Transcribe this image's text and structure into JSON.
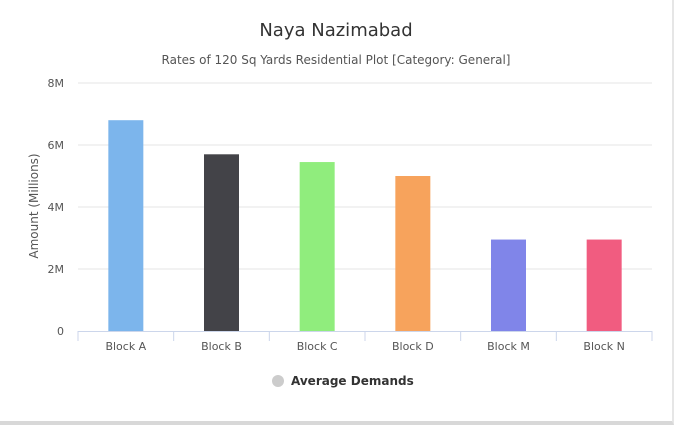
{
  "chart_data": {
    "type": "bar",
    "title": "Naya Nazimabad",
    "subtitle": "Rates of 120 Sq Yards Residential Plot [Category: General]",
    "ylabel": "Amount (Millions)",
    "xlabel": "",
    "categories": [
      "Block A",
      "Block B",
      "Block C",
      "Block D",
      "Block M",
      "Block N"
    ],
    "values": [
      6.8,
      5.7,
      5.45,
      5.0,
      2.95,
      2.95
    ],
    "colors": [
      "#7cb5ec",
      "#434348",
      "#90ed7d",
      "#f7a35c",
      "#8085e9",
      "#f15c80"
    ],
    "ylim": [
      0,
      8
    ],
    "yticks": [
      {
        "value": 0,
        "label": "0"
      },
      {
        "value": 2,
        "label": "2M"
      },
      {
        "value": 4,
        "label": "4M"
      },
      {
        "value": 6,
        "label": "6M"
      },
      {
        "value": 8,
        "label": "8M"
      }
    ],
    "grid": true,
    "legend": {
      "position": "bottom-center",
      "label": "Average Demands",
      "marker_color": "#cccccc"
    }
  }
}
